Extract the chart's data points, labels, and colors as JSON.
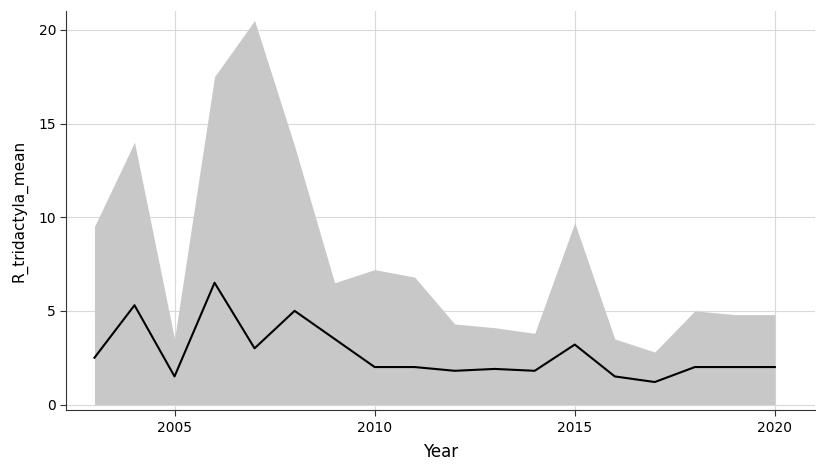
{
  "years": [
    2003,
    2004,
    2005,
    2006,
    2007,
    2008,
    2009,
    2010,
    2011,
    2012,
    2013,
    2014,
    2015,
    2016,
    2017,
    2018,
    2019,
    2020
  ],
  "mean": [
    2.5,
    5.3,
    1.5,
    6.5,
    3.0,
    5.0,
    3.5,
    2.0,
    2.0,
    1.8,
    1.9,
    1.8,
    3.2,
    1.5,
    1.2,
    2.0,
    2.0,
    2.0
  ],
  "upper": [
    9.5,
    14.0,
    3.5,
    17.5,
    20.5,
    13.8,
    6.5,
    7.2,
    6.8,
    4.3,
    4.1,
    3.8,
    9.7,
    3.5,
    2.8,
    5.0,
    4.8,
    4.8
  ],
  "lower": [
    0.0,
    0.0,
    0.0,
    0.0,
    0.0,
    0.0,
    0.0,
    0.0,
    0.0,
    0.0,
    0.0,
    0.0,
    0.0,
    0.0,
    0.0,
    0.0,
    0.0,
    0.0
  ],
  "ylabel": "R_tridactyla_mean",
  "xlabel": "Year",
  "ylim": [
    -0.3,
    21
  ],
  "xlim": [
    2002.3,
    2021.0
  ],
  "yticks": [
    0,
    5,
    10,
    15,
    20
  ],
  "xticks": [
    2005,
    2010,
    2015,
    2020
  ],
  "band_color": "#c8c8c8",
  "line_color": "#000000",
  "bg_color": "#ffffff",
  "grid_color": "#d9d9d9",
  "panel_bg": "#ffffff",
  "line_width": 1.5
}
